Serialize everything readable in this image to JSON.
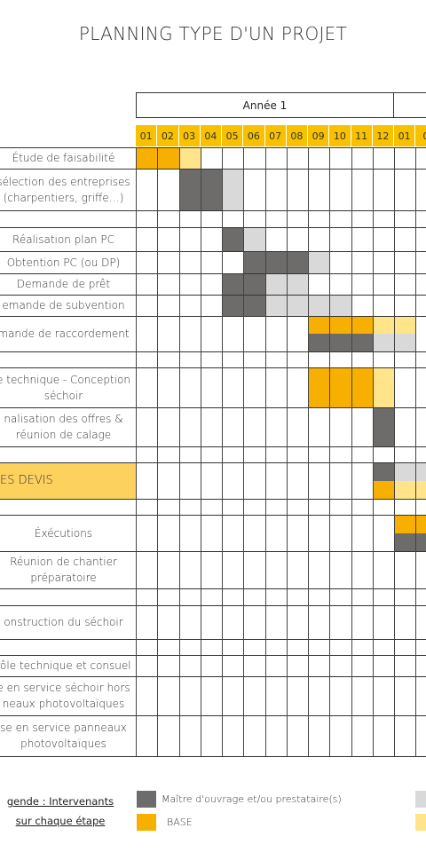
{
  "title": "PLANNING TYPE D'UN PROJET",
  "year_label": "Année 1",
  "months": [
    "01",
    "02",
    "03",
    "04",
    "05",
    "06",
    "07",
    "08",
    "09",
    "10",
    "11",
    "12",
    "01",
    "0"
  ],
  "colors": {
    "dark": "#6E6B6B",
    "orange": "#F8B000",
    "light_grey": "#D9D9D9",
    "light_yellow": "#FFE48A",
    "band": "#FDD15E"
  },
  "rows": [
    {
      "label": "Étude de faisabilité"
    },
    {
      "label": "sélection des entreprises (charpentiers, griffe…)"
    },
    {
      "label": ""
    },
    {
      "label": "Réalisation plan PC"
    },
    {
      "label": "Obtention PC (ou DP)"
    },
    {
      "label": "Demande de prêt"
    },
    {
      "label": "emande de subvention"
    },
    {
      "label": "mande de raccordement"
    },
    {
      "label": ""
    },
    {
      "label": "e technique - Conception séchoir"
    },
    {
      "label": "nalisation des offres & réunion de calage"
    },
    {
      "label": ""
    },
    {
      "label": "ES DEVIS"
    },
    {
      "label": ""
    },
    {
      "label": "Éxécutions"
    },
    {
      "label": "Réunion de chantier préparatoire"
    },
    {
      "label": ""
    },
    {
      "label": "onstruction du séchoir"
    },
    {
      "label": ""
    },
    {
      "label": "rôle technique et consuel"
    },
    {
      "label": "e en service séchoir hors neaux photovoltaïques"
    },
    {
      "label": "se en service panneaux photovoltaïques"
    }
  ],
  "legend": {
    "title": "gende : Intervenants sur chaque étape",
    "items": [
      {
        "label": "Maître d'ouvrage et/ou prestataire(s)",
        "color": "#6E6B6B"
      },
      {
        "label": "BASE",
        "color": "#F8B000"
      }
    ]
  }
}
